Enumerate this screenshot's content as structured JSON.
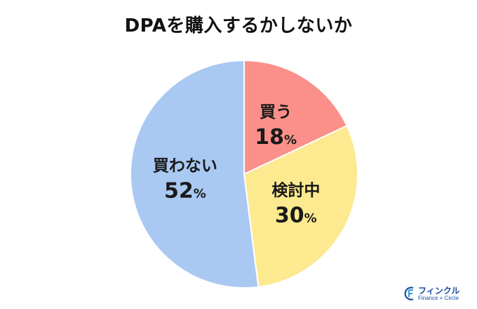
{
  "title": "DPAを購入するかしないか",
  "chart_data": {
    "type": "pie",
    "title": "DPAを購入するかしないか",
    "unit": "%",
    "slices": [
      {
        "label": "買う",
        "value": 18,
        "color": "#fa9089"
      },
      {
        "label": "検討中",
        "value": 30,
        "color": "#fde98f"
      },
      {
        "label": "買わない",
        "value": 52,
        "color": "#a9c9f3"
      }
    ],
    "start": "12 o'clock",
    "direction": "clockwise",
    "border_color": "#ffffff"
  },
  "logo": {
    "brand": "フィンクル",
    "sub": "Finance + Circle",
    "color": "#1c4fa0"
  }
}
